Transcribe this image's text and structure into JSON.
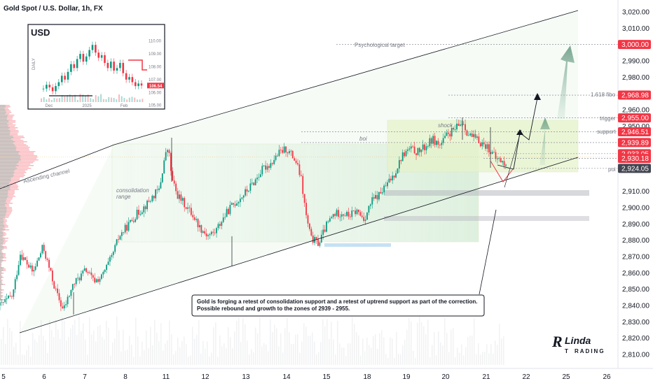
{
  "title": "Gold Spot / U.S. Dollar, 1h, FX",
  "colors": {
    "up": "#089981",
    "down": "#f23645",
    "tag": "#f23645",
    "tag_dark": "#434651",
    "channel": "#131722",
    "zone": "#c8e6c9"
  },
  "annotations": {
    "ascending_channel": "Ascending channel",
    "consolidation": "consolidation",
    "consolidation2": "range",
    "psychological": "Psychological target",
    "fibo": "1.618 fibo",
    "trigger": "trigger",
    "support": "support",
    "poi": "poi",
    "shock": "shock",
    "boi": "boi"
  },
  "note_box": {
    "line1": "Gold is forging a retest of consolidation support and a retest of uptrend support as part of the correction.",
    "line2": "Possible rebound and growth to the zones of 2939 - 2955."
  },
  "brand": {
    "main": "RLinda",
    "sub": "TRADING",
    "r_glyph": "R",
    "rest": "Linda",
    "t_glyph": "T",
    "rest2": "RADING"
  },
  "inset": {
    "label": "USD",
    "side": "DAILY",
    "x_ticks": [
      "Dec",
      "2025",
      "Feb"
    ],
    "y_ticks": [
      "110.00",
      "109.00",
      "108.00",
      "107.00",
      "106.00",
      "105.00"
    ],
    "price_tag": "106.54",
    "volume_label": "",
    "closes": [
      106.3,
      106.6,
      106.4,
      106.1,
      106.5,
      106.8,
      107.3,
      107.0,
      107.6,
      108.2,
      107.9,
      108.6,
      109.0,
      108.4,
      108.8,
      109.3,
      109.7,
      109.1,
      108.7,
      108.9,
      108.3,
      107.9,
      108.4,
      107.7,
      107.9,
      108.3,
      107.5,
      107.0,
      107.2,
      106.8,
      106.5,
      106.7,
      106.54
    ]
  },
  "chart_data": {
    "type": "candlestick",
    "title": "Gold Spot / U.S. Dollar, 1h, FX",
    "y_axis": {
      "ticks": [
        3020,
        3010,
        2990,
        2980,
        2960,
        2950,
        2910,
        2900,
        2890,
        2880,
        2870,
        2860,
        2850,
        2840,
        2830,
        2820,
        2810
      ],
      "tick_labels": [
        "3,020.00",
        "3,010.00",
        "2,990.00",
        "2,980.00",
        "2,960.00",
        "2,950.00",
        "2,910.00",
        "2,900.00",
        "2,890.00",
        "2,880.00",
        "2,870.00",
        "2,860.00",
        "2,850.00",
        "2,840.00",
        "2,830.00",
        "2,820.00",
        "2,810.00"
      ],
      "range": [
        2803,
        3026
      ]
    },
    "x_axis": {
      "labels": [
        "5",
        "6",
        "7",
        "8",
        "11",
        "12",
        "13",
        "14",
        "15",
        "18",
        "19",
        "20",
        "21",
        "22",
        "25",
        "26"
      ]
    },
    "price_tags": [
      {
        "value": 3000.0,
        "label": "3,000.00"
      },
      {
        "value": 2968.98,
        "label": "2,968.98"
      },
      {
        "value": 2955.0,
        "label": "2,955.00"
      },
      {
        "value": 2946.51,
        "label": "2,946.51"
      },
      {
        "value": 2939.89,
        "label": "2,939.89"
      },
      {
        "value": 2933.05,
        "label": "2,933.05"
      },
      {
        "value": 2930.18,
        "label": "2,930.18"
      },
      {
        "value": 2924.05,
        "label": "2,924.05",
        "dark": true
      }
    ],
    "levels": [
      {
        "name": "psychological",
        "value": 3000.0
      },
      {
        "name": "fibo",
        "value": 2968.98
      },
      {
        "name": "trigger",
        "value": 2955.0
      },
      {
        "name": "support",
        "value": 2946.51
      },
      {
        "name": "boi",
        "value": 2939.89
      },
      {
        "name": "level_2933",
        "value": 2933.05
      },
      {
        "name": "level_2930",
        "value": 2930.18
      },
      {
        "name": "poi",
        "value": 2924.05
      }
    ],
    "path_points": [
      [
        0,
        2840
      ],
      [
        0.5,
        2846
      ],
      [
        0.8,
        2872
      ],
      [
        1.3,
        2860
      ],
      [
        1.7,
        2876
      ],
      [
        2.2,
        2849
      ],
      [
        2.5,
        2837
      ],
      [
        2.9,
        2853
      ],
      [
        3.4,
        2862
      ],
      [
        3.7,
        2855
      ],
      [
        4.0,
        2857
      ],
      [
        4.4,
        2869
      ],
      [
        4.7,
        2882
      ],
      [
        5.0,
        2888
      ],
      [
        5.4,
        2896
      ],
      [
        5.8,
        2902
      ],
      [
        6.1,
        2908
      ],
      [
        6.3,
        2911
      ],
      [
        6.5,
        2930
      ],
      [
        6.65,
        2937
      ],
      [
        6.8,
        2917
      ],
      [
        7.0,
        2908
      ],
      [
        7.3,
        2902
      ],
      [
        7.6,
        2896
      ],
      [
        7.9,
        2888
      ],
      [
        8.2,
        2883
      ],
      [
        8.5,
        2885
      ],
      [
        8.8,
        2893
      ],
      [
        9.1,
        2900
      ],
      [
        9.5,
        2906
      ],
      [
        9.8,
        2911
      ],
      [
        10.1,
        2917
      ],
      [
        10.4,
        2924
      ],
      [
        10.7,
        2927
      ],
      [
        11.0,
        2933
      ],
      [
        11.3,
        2936
      ],
      [
        11.5,
        2933
      ],
      [
        11.7,
        2928
      ],
      [
        11.9,
        2918
      ],
      [
        12.1,
        2895
      ],
      [
        12.3,
        2881
      ],
      [
        12.6,
        2878
      ],
      [
        12.9,
        2889
      ],
      [
        13.2,
        2896
      ],
      [
        13.5,
        2897
      ],
      [
        13.8,
        2895
      ],
      [
        14.1,
        2898
      ],
      [
        14.4,
        2893
      ],
      [
        14.7,
        2904
      ],
      [
        15.0,
        2908
      ],
      [
        15.3,
        2914
      ],
      [
        15.6,
        2921
      ],
      [
        15.9,
        2932
      ],
      [
        16.2,
        2936
      ],
      [
        16.5,
        2934
      ],
      [
        16.8,
        2937
      ],
      [
        17.1,
        2942
      ],
      [
        17.4,
        2938
      ],
      [
        17.7,
        2945
      ],
      [
        18.0,
        2948
      ],
      [
        18.3,
        2953
      ],
      [
        18.5,
        2945
      ],
      [
        18.7,
        2943
      ],
      [
        19.0,
        2940
      ],
      [
        19.3,
        2937
      ],
      [
        19.6,
        2930
      ],
      [
        19.8,
        2929
      ],
      [
        20.0,
        2925
      ]
    ],
    "candle_count": 300
  }
}
